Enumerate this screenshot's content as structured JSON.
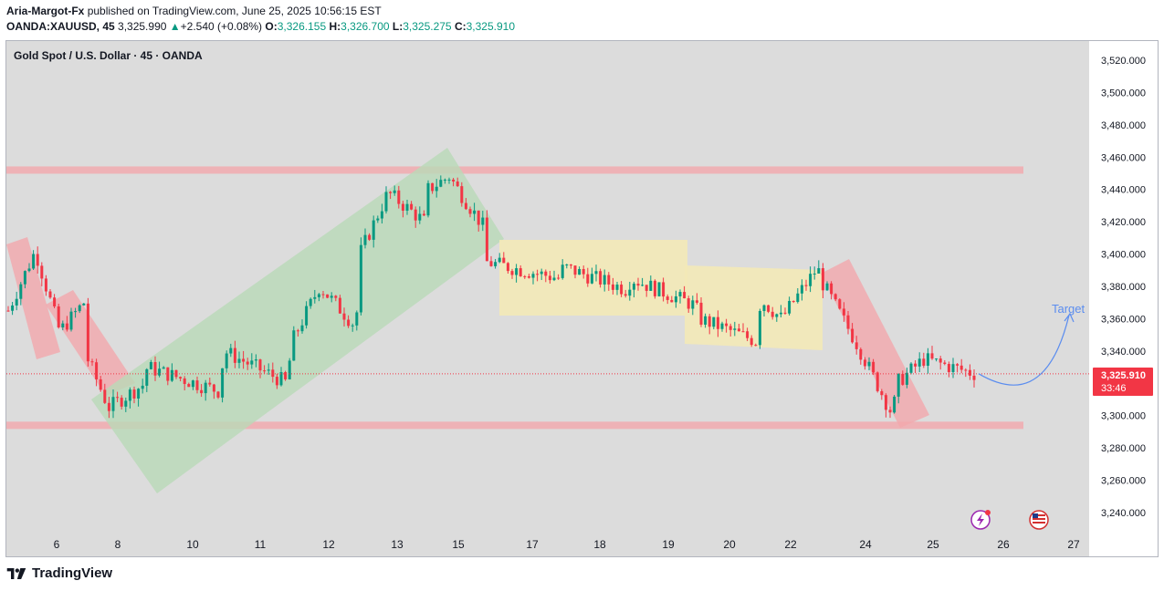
{
  "header": {
    "author": "Aria-Margot-Fx",
    "published_text": "published on TradingView.com, June 25, 2025 10:56:15 EST",
    "symbol": "OANDA:XAUUSD, 45",
    "last": "3,325.990",
    "change_arrow": "▲",
    "change": "+2.540 (+0.08%)",
    "open_label": "O:",
    "open": "3,326.155",
    "high_label": "H:",
    "high": "3,326.700",
    "low_label": "L:",
    "low": "3,325.275",
    "close_label": "C:",
    "close": "3,325.910"
  },
  "chart_title": "Gold Spot / U.S. Dollar · 45 · OANDA",
  "footer": {
    "brand": "TradingView"
  },
  "colors": {
    "up": "#089981",
    "down": "#f23645",
    "plot_bg": "#dcdcdc",
    "level_band": "#f2a7ad",
    "channel_green": "#b9dab8",
    "channel_red": "#f2a7ad",
    "range_yellow": "#f3e9b7",
    "target_curve": "#5b8def",
    "price_label_bg": "#f23645"
  },
  "icons": [
    "lightning-event-icon",
    "us-flag-icon",
    "tradingview-logo-icon"
  ],
  "chart_data": {
    "type": "candlestick",
    "title": "Gold Spot / U.S. Dollar · 45 · OANDA",
    "ylim": [
      3230,
      3530
    ],
    "y_ticks": [
      "3,520.000",
      "3,500.000",
      "3,480.000",
      "3,460.000",
      "3,440.000",
      "3,420.000",
      "3,400.000",
      "3,380.000",
      "3,360.000",
      "3,340.000",
      "3,320.000",
      "3,300.000",
      "3,280.000",
      "3,260.000",
      "3,240.000"
    ],
    "x_ticks": [
      "6",
      "8",
      "10",
      "11",
      "12",
      "13",
      "15",
      "17",
      "18",
      "19",
      "20",
      "22",
      "24",
      "25",
      "26",
      "27"
    ],
    "grid": false,
    "last_price_label": "3,325.910",
    "countdown_label": "33:46",
    "last_price": 3325.91,
    "closing_path": [
      [
        "6",
        3365
      ],
      [
        "6",
        3402
      ],
      [
        "6",
        3352
      ],
      [
        "6",
        3370
      ],
      [
        "8",
        3335
      ],
      [
        "8",
        3305
      ],
      [
        "8",
        3320
      ],
      [
        "10",
        3330
      ],
      [
        "10",
        3315
      ],
      [
        "11",
        3340
      ],
      [
        "11",
        3320
      ],
      [
        "12",
        3345
      ],
      [
        "12",
        3380
      ],
      [
        "12",
        3355
      ],
      [
        "13",
        3400
      ],
      [
        "13",
        3438
      ],
      [
        "13",
        3420
      ],
      [
        "15",
        3440
      ],
      [
        "15",
        3448
      ],
      [
        "15",
        3415
      ],
      [
        "17",
        3395
      ],
      [
        "17",
        3385
      ],
      [
        "18",
        3392
      ],
      [
        "18",
        3378
      ],
      [
        "19",
        3385
      ],
      [
        "19",
        3368
      ],
      [
        "20",
        3360
      ],
      [
        "20",
        3346
      ],
      [
        "22",
        3372
      ],
      [
        "22",
        3360
      ],
      [
        "22",
        3392
      ],
      [
        "24",
        3385
      ],
      [
        "24",
        3345
      ],
      [
        "24",
        3300
      ],
      [
        "25",
        3320
      ],
      [
        "25",
        3335
      ],
      [
        "25",
        3325.91
      ]
    ],
    "levels": [
      3452,
      3294
    ],
    "annotations": [
      {
        "kind": "channel",
        "color": "red",
        "from": [
          "6",
          3410
        ],
        "to": [
          "6",
          3342
        ]
      },
      {
        "kind": "channel",
        "color": "red",
        "from": [
          "6",
          3380
        ],
        "to": [
          "8",
          3318
        ]
      },
      {
        "kind": "channel",
        "color": "green",
        "from": [
          "8",
          3300
        ],
        "to": [
          "15",
          3445
        ]
      },
      {
        "kind": "range",
        "color": "yellow",
        "from": [
          "17",
          3407
        ],
        "to": [
          "19",
          3362
        ]
      },
      {
        "kind": "range",
        "color": "yellow",
        "from": [
          "19",
          3390
        ],
        "to": [
          "22",
          3342
        ]
      },
      {
        "kind": "channel",
        "color": "red",
        "from": [
          "22",
          3390
        ],
        "to": [
          "24",
          3300
        ]
      },
      {
        "kind": "projection",
        "label": "Target",
        "from": [
          "25",
          3325.91
        ],
        "to": [
          "26",
          3360
        ]
      }
    ]
  }
}
